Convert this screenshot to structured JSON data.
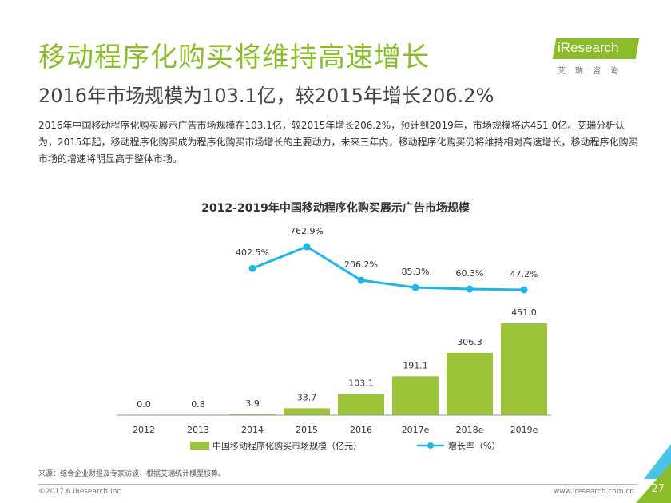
{
  "header": {
    "title": "移动程序化购买将维持高速增长",
    "subtitle": "2016年市场规模为103.1亿，较2015年增长206.2%",
    "description": "2016年中国移动程序化购买展示广告市场规模在103.1亿，较2015年增长206.2%，预计到2019年，市场规模将达451.0亿。艾瑞分析认为，2015年起，移动程序化购买成为程序化购买市场增长的主要动力，未来三年内，移动程序化购买仍将维持相对高速增长，移动程序化购买市场的增速将明显高于整体市场。"
  },
  "logo": {
    "name": "iResearch",
    "sub": "艾瑞咨询"
  },
  "chart_data": {
    "type": "bar",
    "title": "2012-2019年中国移动程序化购买展示广告市场规模",
    "categories": [
      "2012",
      "2013",
      "2014",
      "2015",
      "2016",
      "2017e",
      "2018e",
      "2019e"
    ],
    "series": [
      {
        "name": "中国移动程序化购买市场规模（亿元）",
        "type": "bar",
        "values": [
          0.0,
          0.8,
          3.9,
          33.7,
          103.1,
          191.1,
          306.3,
          451.0
        ],
        "labels": [
          "0.0",
          "0.8",
          "3.9",
          "33.7",
          "103.1",
          "191.1",
          "306.3",
          "451.0"
        ],
        "color": "#9bc43a"
      },
      {
        "name": "增长率（%）",
        "type": "line",
        "values": [
          null,
          null,
          402.5,
          762.9,
          206.2,
          85.3,
          60.3,
          47.2
        ],
        "labels": [
          "",
          "",
          "402.5%",
          "762.9%",
          "206.2%",
          "85.3%",
          "60.3%",
          "47.2%"
        ],
        "color": "#1fb5e6"
      }
    ],
    "ylim_bar": [
      0,
      560
    ],
    "ylim_line": [
      0,
      800
    ],
    "grid": false,
    "legend_position": "bottom"
  },
  "footer": {
    "source": "来源：综合企业财报及专家访谈，根据艾瑞统计模型核算。",
    "copyright": "©2017.6 iResearch Inc",
    "url": "www.iresearch.com.cn",
    "page": "27"
  }
}
